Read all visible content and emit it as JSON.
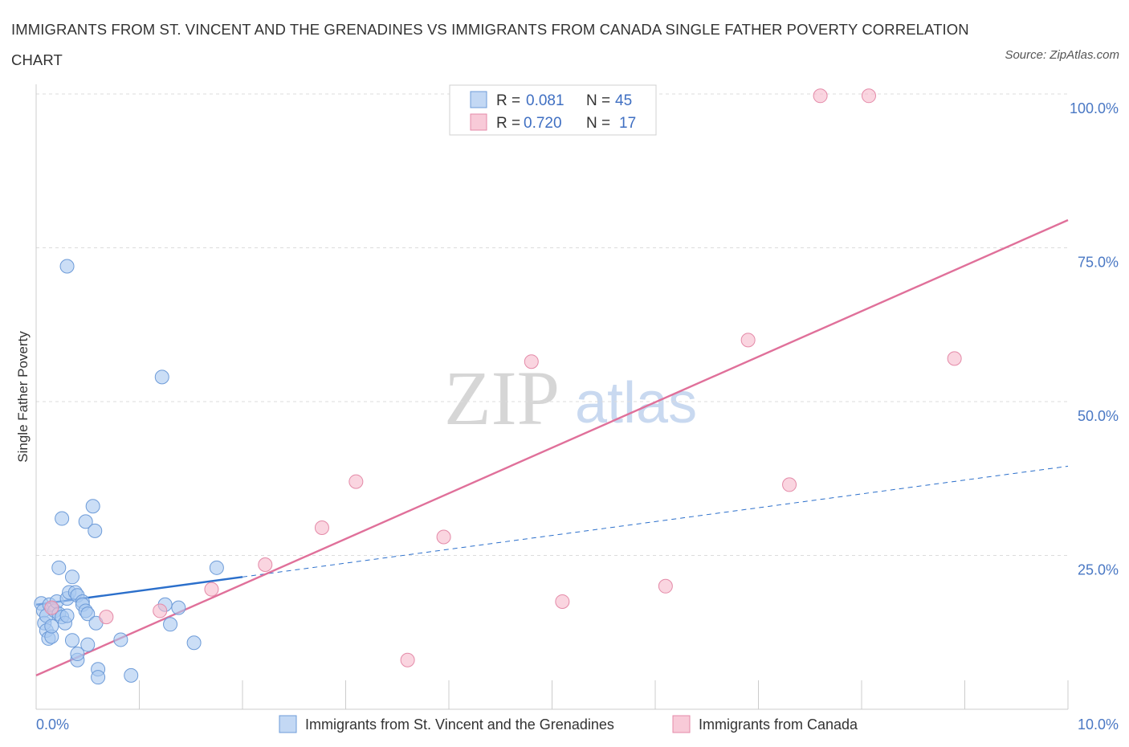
{
  "title": "IMMIGRANTS FROM ST. VINCENT AND THE GRENADINES VS IMMIGRANTS FROM CANADA SINGLE FATHER POVERTY CORRELATION CHART",
  "source": "Source: ZipAtlas.com",
  "watermark": {
    "zip": "ZIP",
    "atlas": "atlas"
  },
  "legend_top": [
    {
      "r_label": "R =",
      "r_value": "0.081",
      "n_label": "N =",
      "n_value": "45",
      "color": "#a9c8f0"
    },
    {
      "r_label": "R =",
      "r_value": "0.720",
      "n_label": "N =",
      "n_value": "17",
      "color": "#f6b9cc"
    }
  ],
  "chart_data": {
    "type": "scatter",
    "title": "IMMIGRANTS FROM ST. VINCENT AND THE GRENADINES VS IMMIGRANTS FROM CANADA SINGLE FATHER POVERTY CORRELATION CHART",
    "xlabel": "",
    "ylabel": "Single Father Poverty",
    "xlim": [
      0,
      10
    ],
    "ylim": [
      0,
      100
    ],
    "x_tick_labels": [
      "0.0%",
      "10.0%"
    ],
    "y_ticks": [
      25,
      50,
      75,
      100
    ],
    "y_tick_labels": [
      "25.0%",
      "50.0%",
      "75.0%",
      "100.0%"
    ],
    "grid": true,
    "legend_placement": "bottom",
    "series": [
      {
        "name": "Immigrants from St. Vincent and the Grenadines",
        "color": "#a9c8f0",
        "stroke": "#6d9bd8",
        "trend_color": "#2b6fcb",
        "points": [
          [
            0.05,
            17.2
          ],
          [
            0.07,
            16.0
          ],
          [
            0.08,
            14.0
          ],
          [
            0.1,
            15.2
          ],
          [
            0.1,
            12.8
          ],
          [
            0.12,
            11.5
          ],
          [
            0.13,
            17.0
          ],
          [
            0.15,
            11.8
          ],
          [
            0.15,
            13.5
          ],
          [
            0.18,
            16.0
          ],
          [
            0.2,
            17.5
          ],
          [
            0.22,
            15.5
          ],
          [
            0.22,
            23.0
          ],
          [
            0.25,
            15.0
          ],
          [
            0.25,
            31.0
          ],
          [
            0.28,
            14.0
          ],
          [
            0.3,
            18.0
          ],
          [
            0.3,
            15.2
          ],
          [
            0.32,
            19.0
          ],
          [
            0.35,
            11.2
          ],
          [
            0.3,
            72.0
          ],
          [
            0.38,
            19.0
          ],
          [
            0.4,
            8.0
          ],
          [
            0.4,
            9.0
          ],
          [
            0.35,
            21.5
          ],
          [
            0.4,
            18.5
          ],
          [
            0.45,
            17.5
          ],
          [
            0.45,
            17.0
          ],
          [
            0.48,
            16.0
          ],
          [
            0.48,
            30.5
          ],
          [
            0.5,
            15.5
          ],
          [
            0.5,
            10.5
          ],
          [
            0.55,
            33.0
          ],
          [
            0.57,
            29.0
          ],
          [
            0.58,
            14.0
          ],
          [
            0.6,
            6.5
          ],
          [
            0.6,
            5.2
          ],
          [
            0.82,
            11.3
          ],
          [
            0.92,
            5.5
          ],
          [
            1.22,
            54.0
          ],
          [
            1.25,
            17.0
          ],
          [
            1.3,
            13.8
          ],
          [
            1.38,
            16.5
          ],
          [
            1.53,
            10.8
          ],
          [
            1.75,
            23.0
          ]
        ],
        "trend_solid": [
          [
            0.0,
            17.0
          ],
          [
            2.0,
            21.5
          ]
        ],
        "trend_dashed": [
          [
            2.0,
            21.5
          ],
          [
            10.0,
            39.5
          ]
        ]
      },
      {
        "name": "Immigrants from Canada",
        "color": "#f6b9cc",
        "stroke": "#e48aa8",
        "trend_color": "#e0709a",
        "points": [
          [
            0.15,
            16.5
          ],
          [
            0.68,
            15.0
          ],
          [
            1.2,
            16.0
          ],
          [
            1.7,
            19.5
          ],
          [
            2.22,
            23.5
          ],
          [
            2.77,
            29.5
          ],
          [
            3.1,
            37.0
          ],
          [
            3.6,
            8.0
          ],
          [
            3.95,
            28.0
          ],
          [
            4.8,
            56.5
          ],
          [
            5.1,
            17.5
          ],
          [
            6.1,
            20.0
          ],
          [
            6.9,
            60.0
          ],
          [
            7.3,
            36.5
          ],
          [
            7.6,
            99.7
          ],
          [
            8.07,
            99.7
          ],
          [
            8.9,
            57.0
          ]
        ],
        "trend_solid": [
          [
            0.0,
            5.5
          ],
          [
            10.0,
            79.5
          ]
        ]
      }
    ]
  }
}
